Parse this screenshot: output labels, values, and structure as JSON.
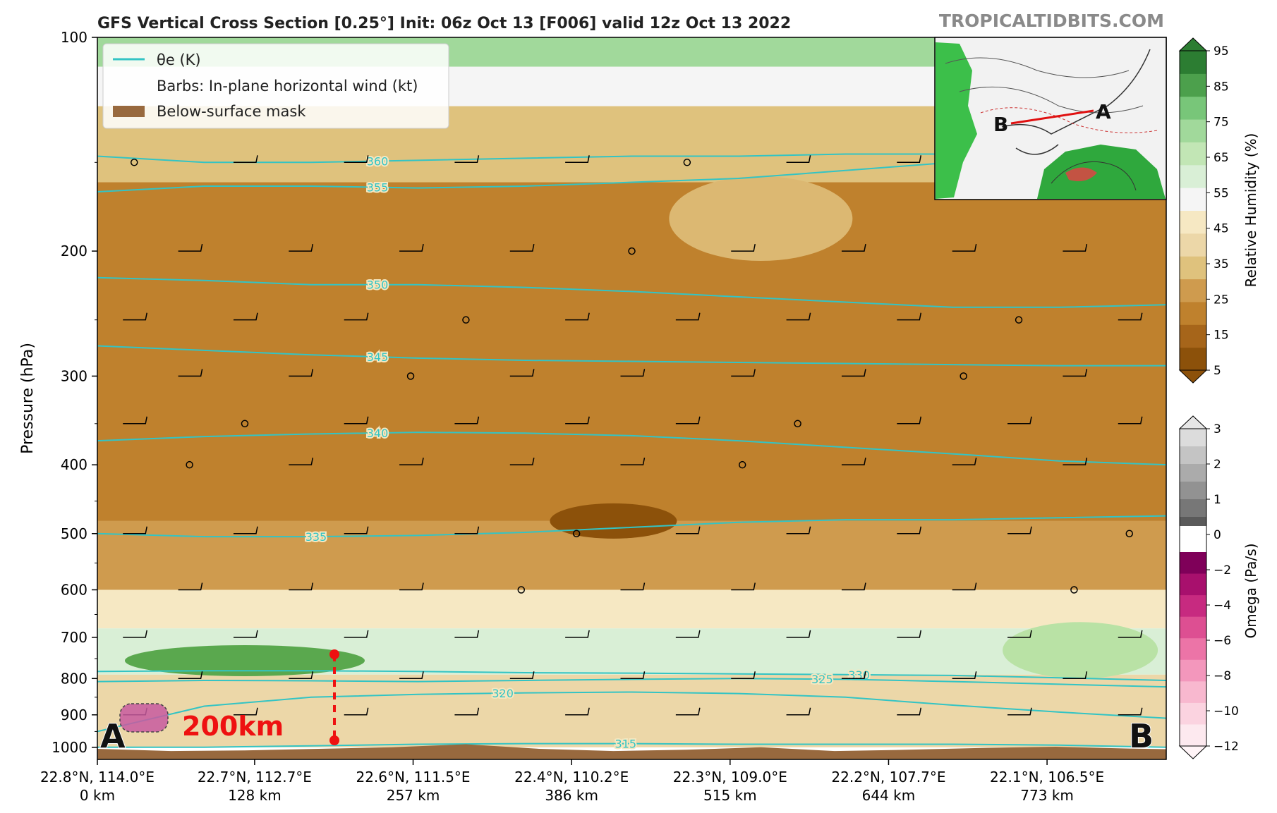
{
  "title": "GFS Vertical Cross Section [0.25°] Init: 06z Oct 13 [F006] valid 12z Oct 13 2022",
  "watermark": "TROPICALTIDBITS.COM",
  "legend": {
    "theta_label": "θe (K)",
    "barbs_label": "Barbs: In-plane horizontal wind (kt)",
    "mask_label": "Below-surface mask"
  },
  "annotations": {
    "point_a": "A",
    "point_b": "B",
    "distance_label": "200km",
    "inset_a": "A",
    "inset_b": "B"
  },
  "chart_data": {
    "type": "heatmap",
    "ylabel": "Pressure (hPa)",
    "y_axis_scale": "log",
    "ylim": [
      1040,
      100
    ],
    "y_ticks": [
      100,
      200,
      300,
      400,
      500,
      600,
      700,
      800,
      900,
      1000
    ],
    "x_ticks": [
      {
        "coord": "22.8°N, 114.0°E",
        "dist": "0 km",
        "km": 0
      },
      {
        "coord": "22.7°N, 112.7°E",
        "dist": "128 km",
        "km": 128
      },
      {
        "coord": "22.6°N, 111.5°E",
        "dist": "257 km",
        "km": 257
      },
      {
        "coord": "22.4°N, 110.2°E",
        "dist": "386 km",
        "km": 386
      },
      {
        "coord": "22.3°N, 109.0°E",
        "dist": "515 km",
        "km": 515
      },
      {
        "coord": "22.2°N, 107.7°E",
        "dist": "644 km",
        "km": 644
      },
      {
        "coord": "22.1°N, 106.5°E",
        "dist": "773 km",
        "km": 773
      }
    ],
    "xlim_km": [
      0,
      870
    ],
    "theta_e_contours": [
      {
        "label": "360",
        "p": [
          147,
          150,
          150,
          149,
          148,
          147,
          147,
          146,
          146,
          146,
          145
        ],
        "label_km": 228
      },
      {
        "label": "355",
        "p": [
          165,
          162,
          162,
          163,
          162,
          160,
          158,
          154,
          150,
          149,
          148
        ],
        "label_km": 228
      },
      {
        "label": "350",
        "p": [
          218,
          220,
          223,
          223,
          225,
          228,
          232,
          236,
          240,
          240,
          238
        ],
        "label_km": 228
      },
      {
        "label": "345",
        "p": [
          272,
          276,
          280,
          283,
          285,
          286,
          287,
          288,
          289,
          290,
          290
        ],
        "label_km": 228
      },
      {
        "label": "340",
        "p": [
          370,
          365,
          362,
          360,
          361,
          364,
          370,
          378,
          386,
          395,
          400
        ],
        "label_km": 228
      },
      {
        "label": "335",
        "p": [
          500,
          505,
          505,
          503,
          498,
          490,
          482,
          478,
          478,
          475,
          472
        ],
        "label_km": 178
      },
      {
        "label": "330",
        "p": [
          782,
          780,
          780,
          782,
          785,
          786,
          788,
          790,
          792,
          798,
          805
        ],
        "label_km": 620
      },
      {
        "label": "325",
        "p": [
          808,
          805,
          806,
          808,
          805,
          802,
          800,
          802,
          808,
          815,
          822
        ],
        "label_km": 590
      },
      {
        "label": "320",
        "p": [
          950,
          875,
          850,
          842,
          838,
          836,
          840,
          850,
          872,
          892,
          910
        ],
        "label_km": 330
      },
      {
        "label": "315",
        "p": [
          1000,
          1000,
          995,
          990,
          988,
          988,
          990,
          990,
          990,
          993,
          1000
        ],
        "label_km": 430
      }
    ],
    "rh_colorbar": {
      "label": "Relative Humidity (%)",
      "ticks": [
        5,
        15,
        25,
        35,
        45,
        55,
        65,
        75,
        85,
        95
      ],
      "colors": [
        "#8c510a",
        "#a6651a",
        "#bf812d",
        "#cf9b4e",
        "#dfc27d",
        "#ecd7a8",
        "#f6e8c3",
        "#f5f5f5",
        "#d9efd6",
        "#c2e6b5",
        "#a1d99b",
        "#78c679",
        "#4ca04c",
        "#2c7d32"
      ]
    },
    "omega_colorbar": {
      "label": "Omega (Pa/s)",
      "ticks": [
        3,
        2,
        1,
        0,
        -2,
        -4,
        -6,
        -8,
        -10,
        -12
      ],
      "pos_colors": [
        "#5a5a5a",
        "#777777",
        "#929292",
        "#ababab",
        "#c4c4c4",
        "#dcdcdc"
      ],
      "neg_colors": [
        "#fde9ef",
        "#fbd3e0",
        "#f8b8cf",
        "#f397bc",
        "#ec74a7",
        "#dd4f92",
        "#c72a80",
        "#a8106d",
        "#7f0059"
      ]
    },
    "rh_bands_top_to_bottom": [
      {
        "p_top": 100,
        "p_bot": 110,
        "rh": 70
      },
      {
        "p_top": 110,
        "p_bot": 125,
        "rh": 50
      },
      {
        "p_top": 125,
        "p_bot": 160,
        "rh": 35
      },
      {
        "p_top": 160,
        "p_bot": 480,
        "rh": 18
      },
      {
        "p_top": 480,
        "p_bot": 600,
        "rh": 25
      },
      {
        "p_top": 600,
        "p_bot": 680,
        "rh": 45
      },
      {
        "p_top": 680,
        "p_bot": 790,
        "rh": 62
      },
      {
        "p_top": 790,
        "p_bot": 1000,
        "rh": 38
      }
    ],
    "barb_rows_hpa": [
      150,
      200,
      250,
      300,
      350,
      400,
      500,
      600,
      700,
      800,
      900
    ]
  }
}
